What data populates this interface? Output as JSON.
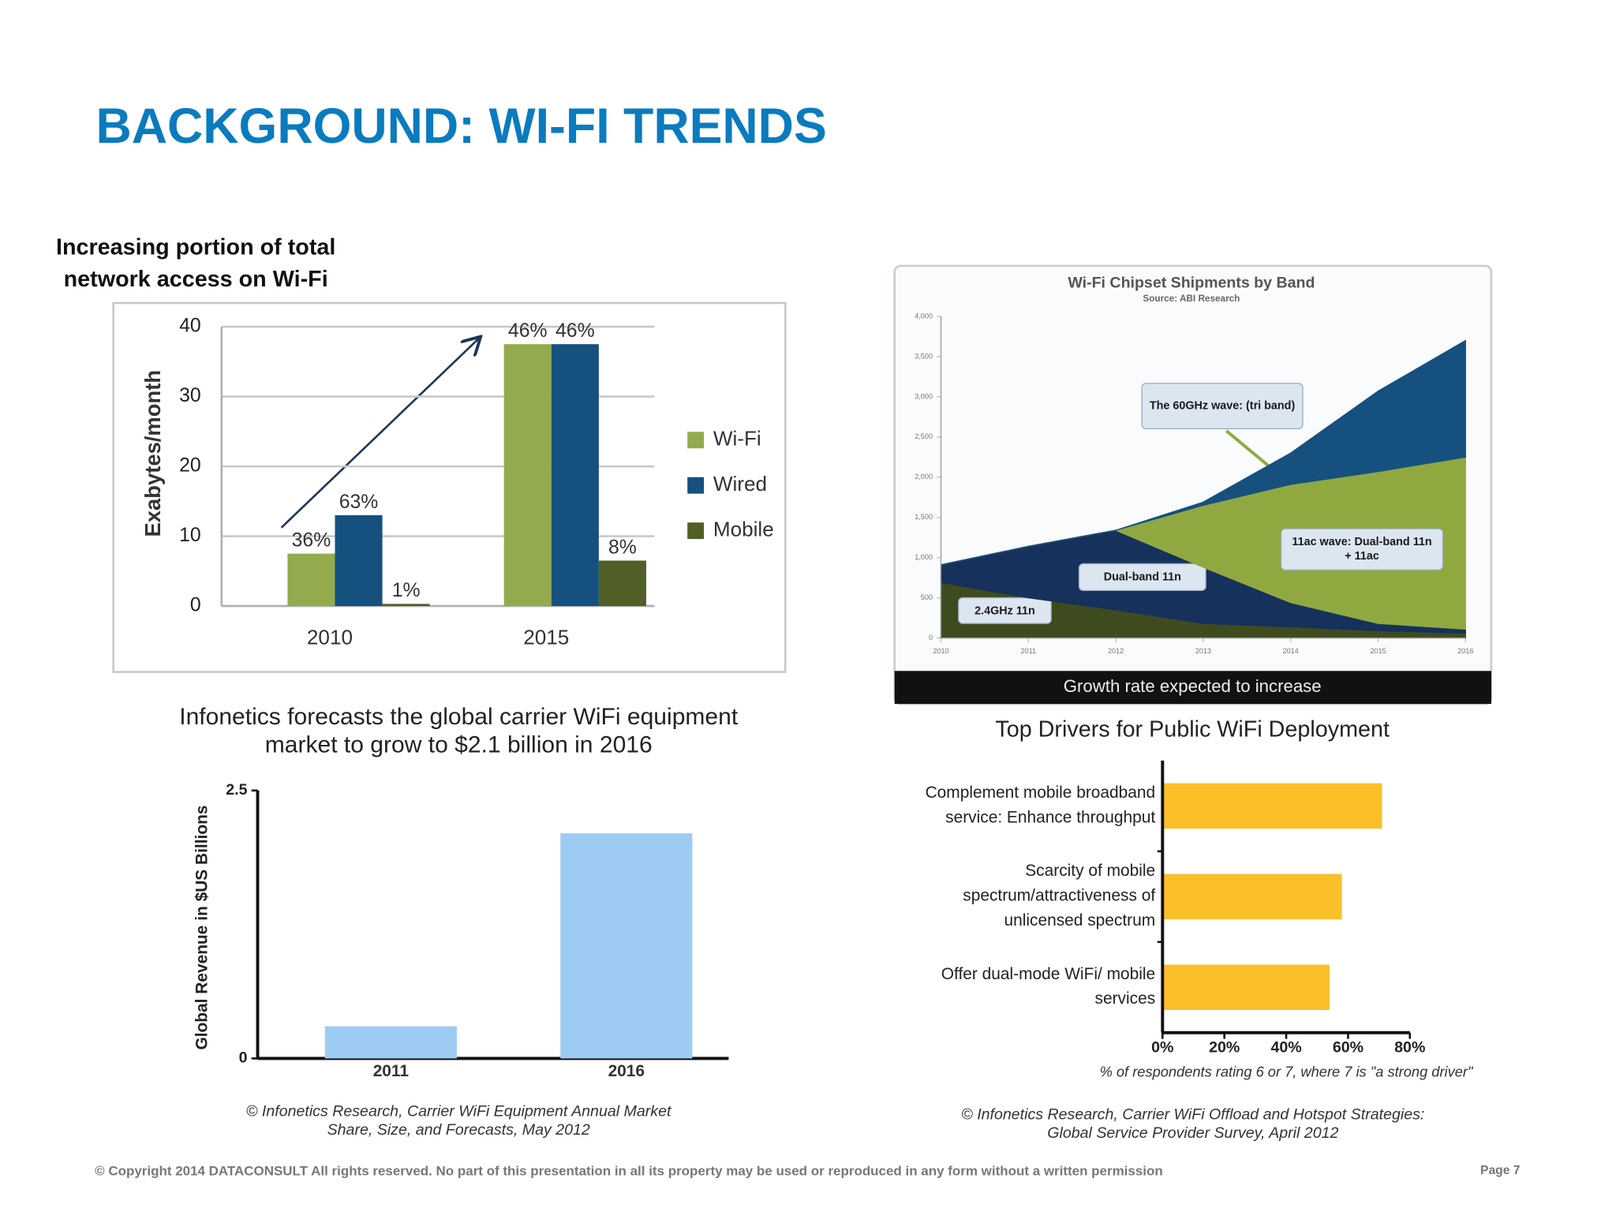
{
  "title": "BACKGROUND: WI-FI TRENDS",
  "footer": "© Copyright 2014 DATACONSULT  All rights reserved. No part of this presentation in all its property may be used or reproduced in any form without a written permission",
  "page": "Page 7",
  "chart_data": [
    {
      "type": "bar",
      "title": "Increasing portion of total network access on Wi-Fi",
      "ylabel": "Exabytes/month",
      "categories": [
        "2010",
        "2015"
      ],
      "series": [
        {
          "name": "Wi-Fi",
          "color": "#93ab4c",
          "values": [
            7.5,
            37.5
          ],
          "share_labels": [
            "36%",
            "46%"
          ]
        },
        {
          "name": "Wired",
          "color": "#15507e",
          "values": [
            13,
            37.5
          ],
          "share_labels": [
            "63%",
            "46%"
          ]
        },
        {
          "name": "Mobile",
          "color": "#4f5f26",
          "values": [
            0.3,
            6.5
          ],
          "share_labels": [
            "1%",
            "8%"
          ]
        }
      ],
      "ylim": [
        0,
        40
      ],
      "yticks": [
        0,
        10,
        20,
        30,
        40
      ],
      "grid": true,
      "legend": "right"
    },
    {
      "type": "area",
      "stacked": true,
      "title": "Wi-Fi Chipset Shipments by Band",
      "subtitle": "Source: ABI Research",
      "caption": "Growth rate expected to increase",
      "x": [
        2010,
        2011,
        2012,
        2013,
        2014,
        2015,
        2016
      ],
      "xlim": [
        2010,
        2016
      ],
      "xticks": [
        2010,
        2011,
        2012,
        2013,
        2014,
        2015,
        2016
      ],
      "ylim": [
        0,
        4000
      ],
      "yticks": [
        0,
        500,
        {
          "value": 1000,
          "label": "1,000"
        },
        {
          "value": 1500,
          "label": "1,500"
        },
        {
          "value": 2000,
          "label": "2,000"
        },
        {
          "value": 2500,
          "label": "2,500"
        },
        {
          "value": 3000,
          "label": "3,000"
        },
        {
          "value": 3500,
          "label": "3,500"
        },
        {
          "value": 4000,
          "label": "4,000"
        }
      ],
      "series": [
        {
          "name": "2.4GHz 11n",
          "color": "#3e4b1f",
          "values": [
            690,
            500,
            350,
            180,
            140,
            90,
            60
          ]
        },
        {
          "name": "Dual-band 11n",
          "color": "#16315b",
          "values": [
            220,
            640,
            990,
            700,
            300,
            90,
            50
          ]
        },
        {
          "name": "11ac wave: Dual-band 11n + 11ac",
          "color": "#8fa940",
          "values": [
            0,
            0,
            0,
            770,
            1470,
            1890,
            2140
          ]
        },
        {
          "name": "The 60GHz wave: (tri band)",
          "color": "#16507e",
          "values": [
            0,
            0,
            0,
            40,
            390,
            1000,
            1450
          ]
        }
      ]
    },
    {
      "type": "bar",
      "title": "Infonetics forecasts the global carrier WiFi equipment market to grow to $2.1 billion in 2016",
      "ylabel": "Global Revenue in $US Billions",
      "categories": [
        "2011",
        "2016"
      ],
      "values": [
        0.3,
        2.1
      ],
      "color": "#9ecbf2",
      "ylim": [
        0,
        2.5
      ],
      "yticks": [
        0,
        2.5
      ],
      "grid": false,
      "source": "© Infonetics Research, Carrier WiFi Equipment Annual Market Share, Size, and Forecasts, May 2012"
    },
    {
      "type": "barh",
      "title": "Top Drivers for Public WiFi Deployment",
      "categories": [
        "Complement mobile broadband service: Enhance throughput",
        "Scarcity of mobile spectrum/attractiveness of unlicensed spectrum",
        "Offer dual-mode WiFi/ mobile services"
      ],
      "values": [
        71,
        58,
        54
      ],
      "color": "#fbbf2a",
      "xlim": [
        0,
        80
      ],
      "xticks": [
        {
          "value": 0,
          "label": "0%"
        },
        {
          "value": 20,
          "label": "20%"
        },
        {
          "value": 40,
          "label": "40%"
        },
        {
          "value": 60,
          "label": "60%"
        },
        {
          "value": 80,
          "label": "80%"
        }
      ],
      "xlabel": "% of respondents rating 6 or 7, where 7 is \"a strong driver\"",
      "source": "© Infonetics Research, Carrier WiFi Offload and Hotspot Strategies: Global Service Provider Survey, April 2012"
    }
  ]
}
